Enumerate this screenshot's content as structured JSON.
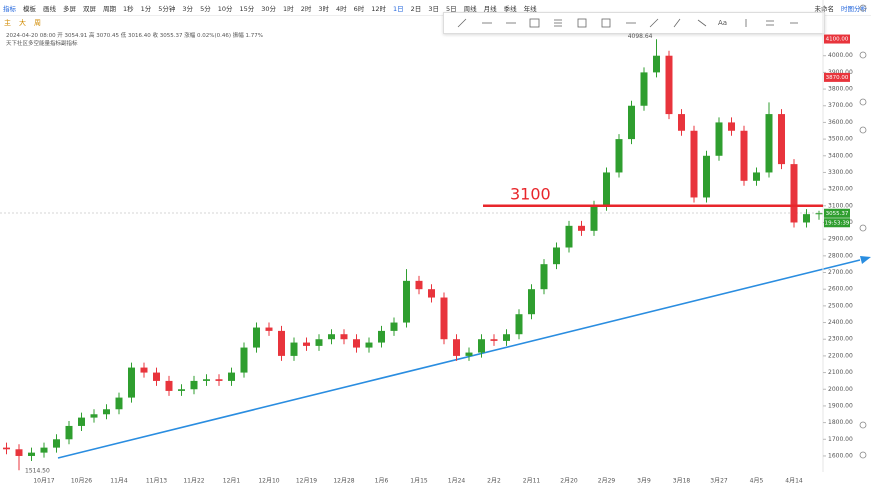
{
  "toolbar": {
    "left": [
      "指标",
      "模板",
      "画线",
      "多屏",
      "双屏",
      "周期"
    ],
    "periods": [
      "1秒",
      "1分",
      "5分钟",
      "3分",
      "5分",
      "10分",
      "15分",
      "30分",
      "1时",
      "2时",
      "3时",
      "4时",
      "6时",
      "12时",
      "1日",
      "2日",
      "3日",
      "5日",
      "周线",
      "月线",
      "季线",
      "年线"
    ],
    "active_period": 14,
    "right": [
      "未命名",
      "时图分析"
    ],
    "sub": [
      "主",
      "大",
      "周"
    ]
  },
  "info": {
    "line1": "2024-04-20 08:00  开 3054.91  高 3070.45  低 3016.40  收 3055.37  涨幅 0.02%(0.46)  振幅 1.77%",
    "line2": "天下社区多空能量指标副指标"
  },
  "chart_data": {
    "type": "candlestick",
    "categories": [
      null,
      null,
      null,
      "10月17",
      null,
      null,
      "10月26",
      null,
      null,
      "11月4",
      null,
      null,
      "11月13",
      null,
      null,
      "11月22",
      null,
      null,
      "12月1",
      null,
      null,
      "12月10",
      null,
      null,
      "12月19",
      null,
      null,
      "12月28",
      null,
      null,
      "1月6",
      null,
      null,
      "1月15",
      null,
      null,
      "1月24",
      null,
      null,
      "2月2",
      null,
      null,
      "2月11",
      null,
      null,
      "2月20",
      null,
      null,
      "2月29",
      null,
      null,
      "3月9",
      null,
      null,
      "3月18",
      null,
      null,
      "3月27",
      null,
      null,
      "4月5",
      null,
      null,
      "4月14",
      null,
      null
    ],
    "open": [
      1650,
      1640,
      1600,
      1620,
      1650,
      1700,
      1780,
      1830,
      1850,
      1880,
      1950,
      2130,
      2100,
      2050,
      1990,
      2000,
      2050,
      2060,
      2050,
      2100,
      2250,
      2370,
      2350,
      2200,
      2280,
      2260,
      2300,
      2330,
      2300,
      2250,
      2280,
      2350,
      2400,
      2650,
      2600,
      2550,
      2300,
      2200,
      2220,
      2300,
      2290,
      2330,
      2450,
      2600,
      2750,
      2850,
      2980,
      2950,
      3100,
      3300,
      3500,
      3700,
      3900,
      4000,
      3650,
      3550,
      3150,
      3400,
      3600,
      3550,
      3250,
      3300,
      3650,
      3350,
      3000,
      3054.91
    ],
    "high": [
      1680,
      1670,
      1650,
      1680,
      1730,
      1810,
      1860,
      1880,
      1910,
      1980,
      2160,
      2160,
      2130,
      2080,
      2030,
      2080,
      2090,
      2090,
      2130,
      2280,
      2400,
      2400,
      2380,
      2310,
      2310,
      2330,
      2360,
      2360,
      2330,
      2310,
      2380,
      2430,
      2720,
      2680,
      2630,
      2580,
      2330,
      2250,
      2330,
      2330,
      2360,
      2480,
      2630,
      2780,
      2880,
      3010,
      3010,
      3130,
      3330,
      3530,
      3730,
      3930,
      4098.64,
      4030,
      3680,
      3580,
      3430,
      3630,
      3630,
      3580,
      3330,
      3720,
      3680,
      3380,
      3080,
      3070.45
    ],
    "low": [
      1610,
      1514.5,
      1570,
      1590,
      1620,
      1670,
      1750,
      1800,
      1820,
      1850,
      1920,
      2070,
      2020,
      1960,
      1960,
      1970,
      2020,
      2020,
      2020,
      2070,
      2220,
      2320,
      2170,
      2170,
      2230,
      2230,
      2270,
      2270,
      2220,
      2220,
      2250,
      2320,
      2370,
      2570,
      2520,
      2270,
      2170,
      2170,
      2190,
      2260,
      2260,
      2300,
      2420,
      2570,
      2720,
      2820,
      2920,
      2920,
      3070,
      3270,
      3470,
      3670,
      3870,
      3620,
      3520,
      3120,
      3120,
      3370,
      3520,
      3220,
      3220,
      3270,
      3320,
      2970,
      2970,
      3016.4
    ],
    "close": [
      1640,
      1600,
      1620,
      1650,
      1700,
      1780,
      1830,
      1850,
      1880,
      1950,
      2130,
      2100,
      2050,
      1990,
      2000,
      2050,
      2060,
      2050,
      2100,
      2250,
      2370,
      2350,
      2200,
      2280,
      2260,
      2300,
      2330,
      2300,
      2250,
      2280,
      2350,
      2400,
      2650,
      2600,
      2550,
      2300,
      2200,
      2220,
      2300,
      2290,
      2330,
      2450,
      2600,
      2750,
      2850,
      2980,
      2950,
      3100,
      3300,
      3500,
      3700,
      3900,
      4000,
      3650,
      3550,
      3150,
      3400,
      3600,
      3550,
      3250,
      3300,
      3650,
      3350,
      3000,
      3050,
      3055.37
    ],
    "up_color": "#2f9e2f",
    "down_color": "#e8343c",
    "max_label": "4098.64",
    "min_label": "1514.50",
    "ylim": [
      1550,
      4150
    ],
    "yticks": [
      {
        "value": 1600,
        "label": "1600.00"
      },
      {
        "value": 1700,
        "label": "1700.00"
      },
      {
        "value": 1800,
        "label": "1800.00"
      },
      {
        "value": 1900,
        "label": "1900.00"
      },
      {
        "value": 2000,
        "label": "2000.00"
      },
      {
        "value": 2100,
        "label": "2100.00"
      },
      {
        "value": 2200,
        "label": "2200.00"
      },
      {
        "value": 2300,
        "label": "2300.00"
      },
      {
        "value": 2400,
        "label": "2400.00"
      },
      {
        "value": 2500,
        "label": "2500.00"
      },
      {
        "value": 2600,
        "label": "2600.00"
      },
      {
        "value": 2700,
        "label": "2700.00"
      },
      {
        "value": 2800,
        "label": "2800.00"
      },
      {
        "value": 2900,
        "label": "2900.00"
      },
      {
        "value": 3000,
        "label": "3000.00"
      },
      {
        "value": 3100,
        "label": "3100.00"
      },
      {
        "value": 3200,
        "label": "3200.00"
      },
      {
        "value": 3300,
        "label": "3300.00"
      },
      {
        "value": 3400,
        "label": "3400.00"
      },
      {
        "value": 3500,
        "label": "3500.00"
      },
      {
        "value": 3600,
        "label": "3600.00"
      },
      {
        "value": 3700,
        "label": "3700.00"
      },
      {
        "value": 3800,
        "label": "3800.00"
      },
      {
        "value": 3900,
        "label": "3900.00"
      },
      {
        "value": 4000,
        "label": "4000.00"
      }
    ],
    "hline": {
      "value": 3100,
      "label": "3100",
      "color": "#e8262b"
    },
    "price_tags": [
      {
        "value": 4100,
        "label": "4100.00",
        "color": "#e8343c"
      },
      {
        "value": 3870,
        "label": "3870.00",
        "color": "#e8343c"
      },
      {
        "value": 3055.37,
        "label": "3055.37",
        "color": "#2f9e2f"
      }
    ],
    "countdown": "19:53:39"
  }
}
